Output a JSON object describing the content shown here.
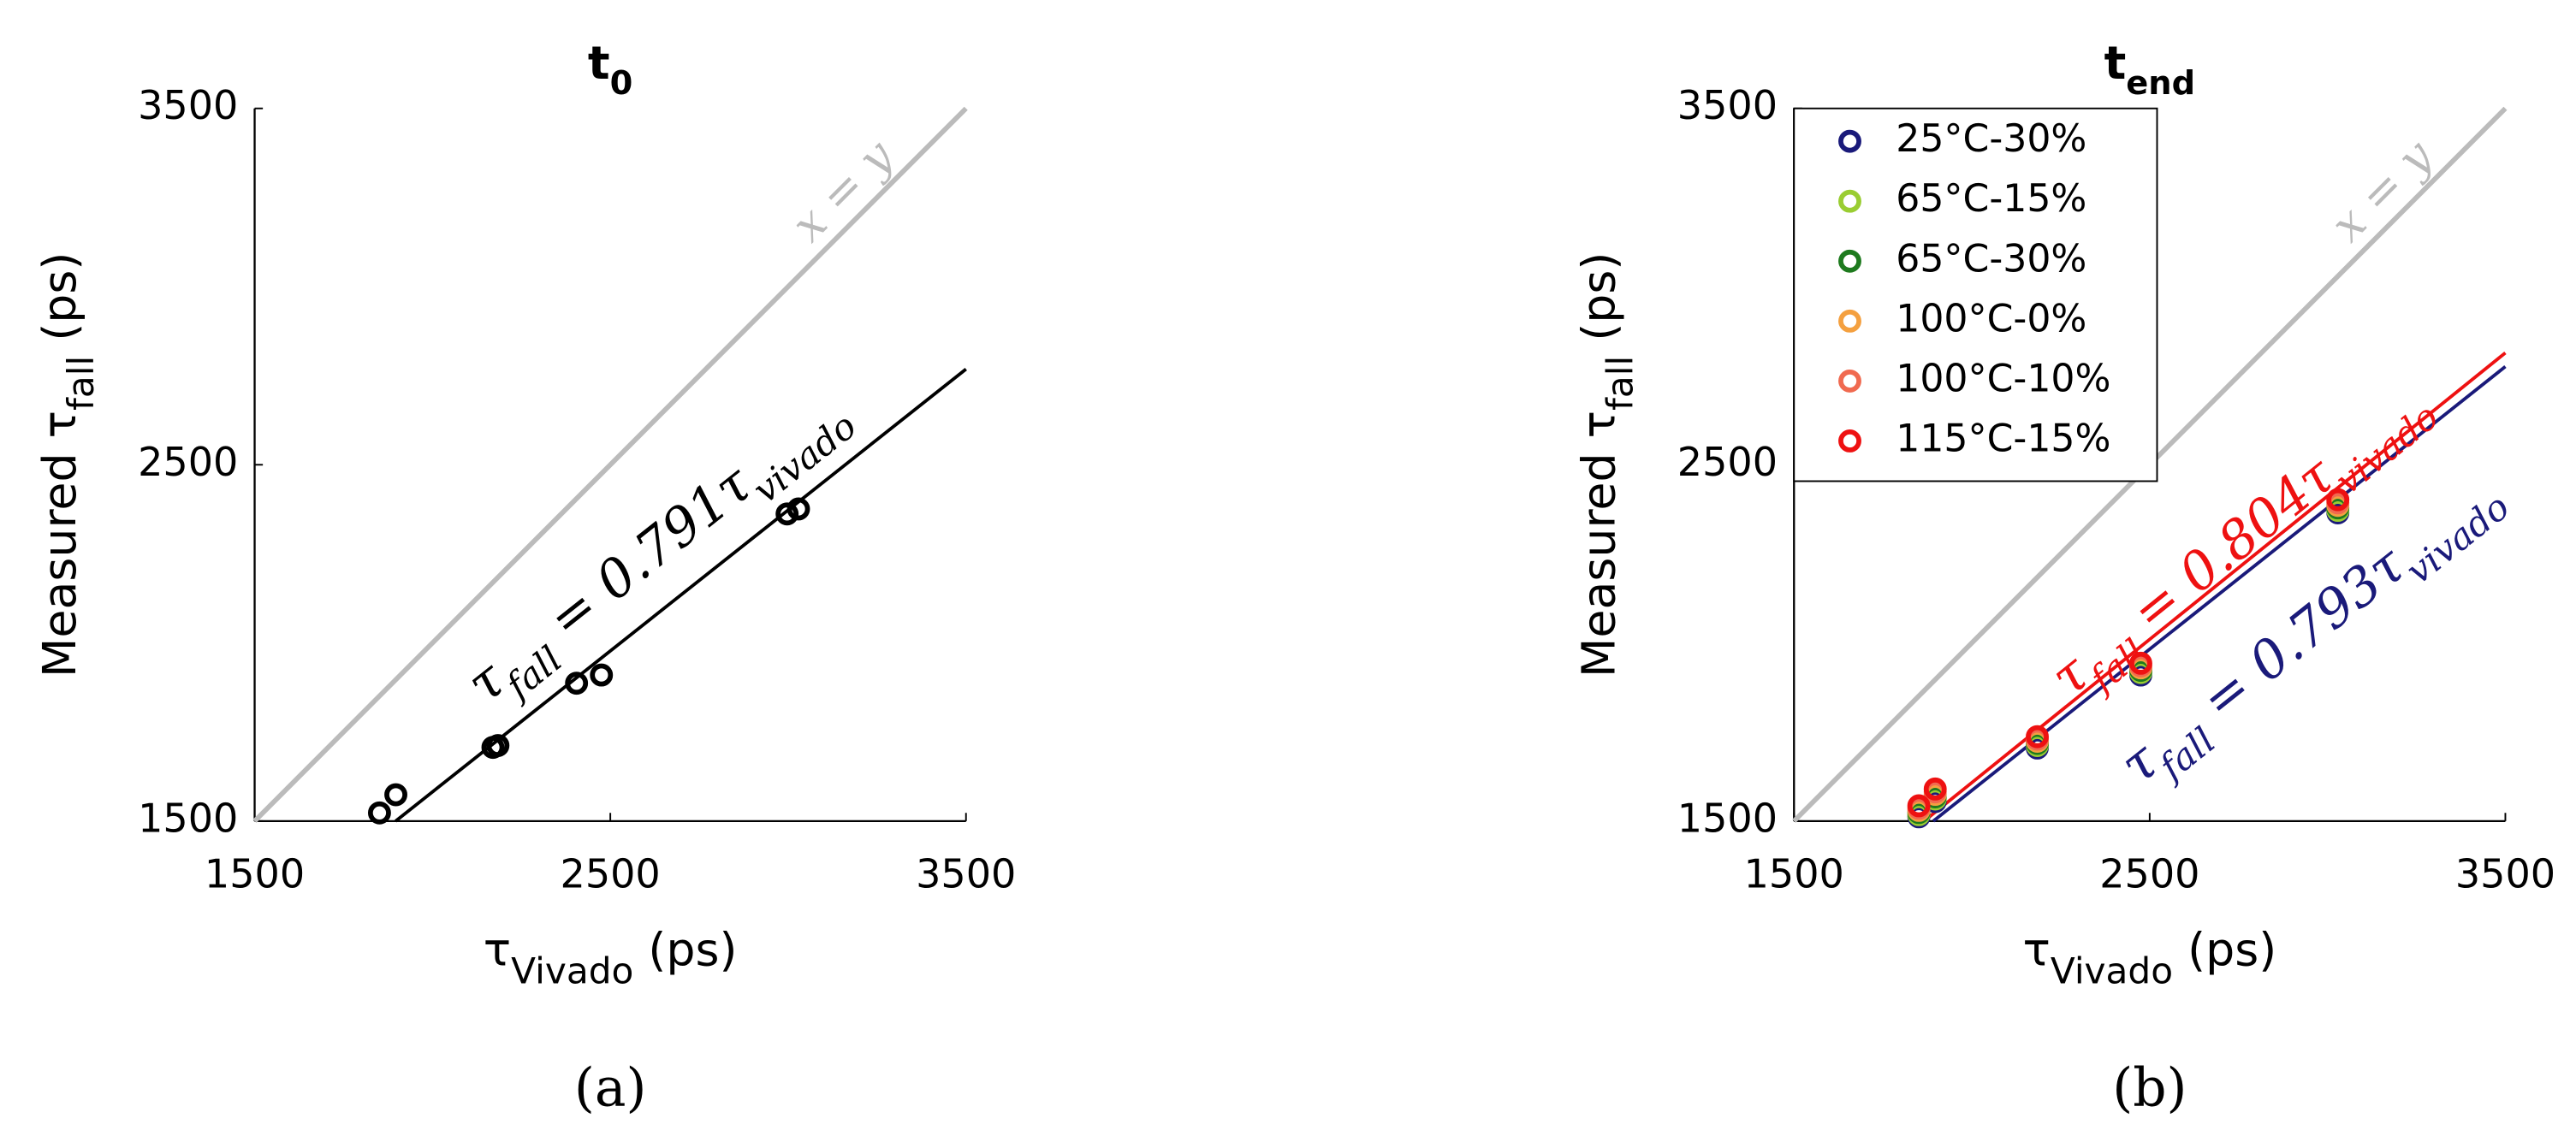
{
  "chart_data": [
    {
      "type": "scatter",
      "title": [
        "t",
        "0"
      ],
      "caption": "(a)",
      "xlabel": [
        "τ",
        "Vivado",
        " (ps)"
      ],
      "ylabel": [
        "Measured τ",
        "fall",
        " (ps)"
      ],
      "xlim": [
        1500,
        3500
      ],
      "ylim": [
        1500,
        3500
      ],
      "xticks": [
        1500,
        2500,
        3500
      ],
      "yticks": [
        1500,
        2500,
        3500
      ],
      "identity_label": "x = y",
      "x": [
        1851,
        1897,
        2170,
        2184,
        2405,
        2475,
        2997,
        3029
      ],
      "series": [
        {
          "color": "#000000",
          "values": [
            1523,
            1574,
            1707,
            1712,
            1887,
            1910,
            2362,
            2376
          ]
        }
      ],
      "fits": [
        {
          "slope": 0.791,
          "color": "#000000",
          "label": [
            "τ",
            "fall",
            " = 0.791τ",
            "vivado"
          ]
        }
      ]
    },
    {
      "type": "scatter",
      "title": [
        "t",
        "end"
      ],
      "caption": "(b)",
      "xlabel": [
        "τ",
        "Vivado",
        " (ps)"
      ],
      "ylabel": [
        "Measured τ",
        "fall",
        " (ps)"
      ],
      "xlim": [
        1500,
        3500
      ],
      "ylim": [
        1500,
        3500
      ],
      "xticks": [
        1500,
        2500,
        3500
      ],
      "yticks": [
        1500,
        2500,
        3500
      ],
      "identity_label": "x = y",
      "legend": "upper left",
      "x": [
        1851,
        1897,
        2184,
        2475,
        3029
      ],
      "series": [
        {
          "name": "25°C-30%",
          "color": "#1a1a7a",
          "values": [
            1512,
            1555,
            1705,
            1910,
            2365
          ]
        },
        {
          "name": "65°C-15%",
          "color": "#9acd32",
          "values": [
            1518,
            1562,
            1712,
            1917,
            2372
          ]
        },
        {
          "name": "65°C-30%",
          "color": "#1e7a1e",
          "values": [
            1524,
            1568,
            1718,
            1923,
            2379
          ]
        },
        {
          "name": "100°C-0%",
          "color": "#f4a040",
          "values": [
            1530,
            1575,
            1724,
            1930,
            2386
          ]
        },
        {
          "name": "100°C-10%",
          "color": "#f06a50",
          "values": [
            1536,
            1582,
            1730,
            1936,
            2393
          ]
        },
        {
          "name": "115°C-15%",
          "color": "#ee1111",
          "values": [
            1543,
            1590,
            1737,
            1943,
            2402
          ]
        }
      ],
      "fits": [
        {
          "slope": 0.793,
          "color": "#1a1a7a",
          "label": [
            "τ",
            "fall",
            " = 0.793τ",
            "vivado"
          ]
        },
        {
          "slope": 0.804,
          "color": "#ee1111",
          "label": [
            "τ",
            "fall",
            " = 0.804τ",
            "vivado"
          ]
        }
      ]
    }
  ]
}
